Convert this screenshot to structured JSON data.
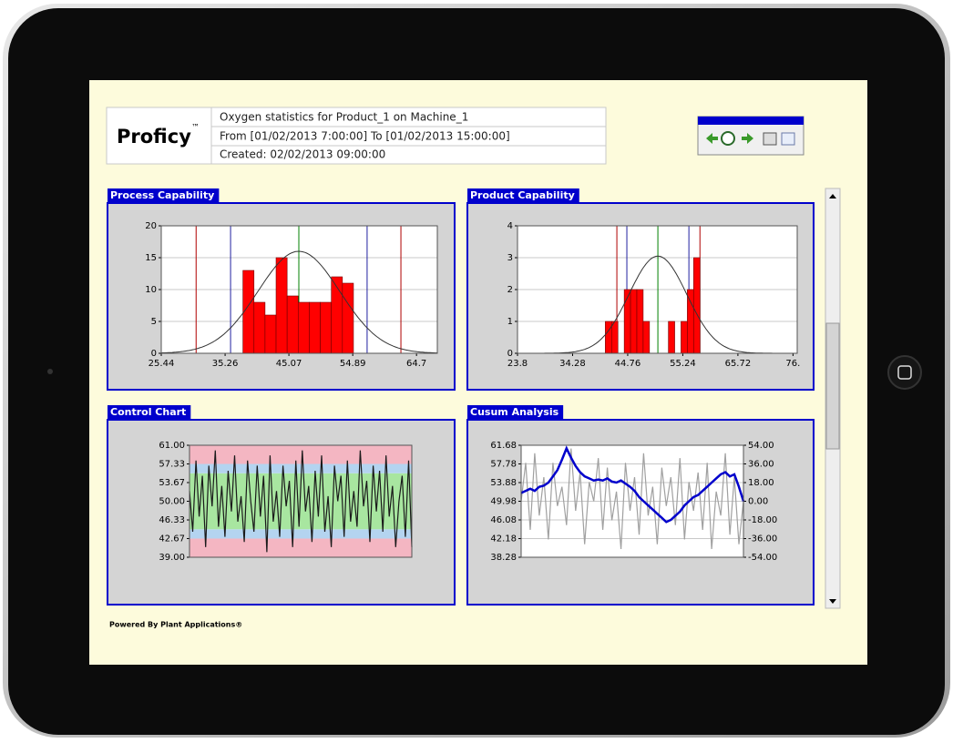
{
  "header": {
    "logo": "Proficy",
    "logo_mark": "™",
    "lines": [
      "Oxygen statistics for Product_1 on Machine_1",
      "From [01/02/2013 7:00:00] To [01/02/2013 15:00:00]",
      "Created: 02/02/2013 09:00:00"
    ]
  },
  "footer": "Powered By Plant Applications®",
  "chart_data": [
    {
      "type": "histogram",
      "title": "Process Capability",
      "bins": [
        38.0,
        39.7,
        41.4,
        43.1,
        44.8,
        46.5,
        48.2,
        49.9,
        51.6,
        53.3,
        55.0
      ],
      "counts": [
        13,
        8,
        6,
        15,
        9,
        8,
        8,
        8,
        12,
        11
      ],
      "color": "#ff0000",
      "xlim": [
        25.44,
        67.9
      ],
      "xticks": [
        25.44,
        35.26,
        45.07,
        54.89,
        64.7
      ],
      "ylim": [
        0,
        20
      ],
      "yticks": [
        0,
        5,
        10,
        15,
        20
      ],
      "grid": true,
      "spec_lines": [
        {
          "value": 30.8,
          "color": "#b00000"
        },
        {
          "value": 36.1,
          "color": "#2020a0"
        },
        {
          "value": 46.6,
          "color": "#008000"
        },
        {
          "value": 57.1,
          "color": "#2020a0"
        },
        {
          "value": 62.3,
          "color": "#b00000"
        }
      ],
      "normal_fit": {
        "mean": 46.6,
        "sd": 6.3,
        "peak": 16,
        "color": "#333333"
      }
    },
    {
      "type": "histogram",
      "title": "Product Capability",
      "bins": [
        40.5,
        41.7,
        42.9,
        44.1,
        45.3,
        46.5,
        47.7,
        48.9,
        50.1,
        51.3,
        52.5,
        53.7,
        54.9,
        56.1,
        57.3,
        58.5
      ],
      "counts": [
        1,
        1,
        0,
        2,
        2,
        2,
        1,
        0,
        0,
        0,
        1,
        0,
        1,
        2,
        3
      ],
      "color": "#ff0000",
      "xlim": [
        23.8,
        77.0
      ],
      "xticks": [
        23.8,
        34.28,
        44.76,
        55.24,
        65.72,
        {
          "value": 76.2,
          "label": "76."
        }
      ],
      "ylim": [
        0,
        4
      ],
      "yticks": [
        0,
        1,
        2,
        3,
        4
      ],
      "grid": true,
      "spec_lines": [
        {
          "value": 42.7,
          "color": "#b00000"
        },
        {
          "value": 44.6,
          "color": "#2020a0"
        },
        {
          "value": 50.5,
          "color": "#008000"
        },
        {
          "value": 56.4,
          "color": "#2020a0"
        },
        {
          "value": 58.5,
          "color": "#b00000"
        }
      ],
      "normal_fit": {
        "mean": 50.5,
        "sd": 5.5,
        "peak": 3.05,
        "color": "#333333"
      }
    },
    {
      "type": "line",
      "title": "Control Chart",
      "values": [
        52,
        44,
        58,
        47,
        55,
        41,
        57,
        49,
        60,
        45,
        53,
        43,
        56,
        48,
        59,
        46,
        51,
        42,
        58,
        50,
        44,
        57,
        47,
        55,
        40,
        59,
        46,
        52,
        43,
        57,
        49,
        54,
        41,
        58,
        45,
        60,
        48,
        53,
        42,
        56,
        47,
        59,
        44,
        51,
        41,
        57,
        50,
        55,
        43,
        58,
        46,
        52,
        45,
        60,
        49,
        54,
        42,
        57,
        48,
        56,
        44,
        59,
        47,
        53,
        41,
        50,
        55,
        43,
        58,
        41
      ],
      "color": "#1a1a1a",
      "ylim": [
        39,
        61
      ],
      "yticks": [
        {
          "value": 39,
          "label": "39.00"
        },
        42.67,
        46.33,
        {
          "value": 50,
          "label": "50.00"
        },
        53.67,
        57.33,
        {
          "value": 61,
          "label": "61.00"
        }
      ],
      "zones": [
        {
          "from": 39,
          "to": 42.67,
          "color": "#f4b6c2"
        },
        {
          "from": 42.67,
          "to": 44.5,
          "color": "#b4d4f0"
        },
        {
          "from": 44.5,
          "to": 55.5,
          "color": "#a8e6a0"
        },
        {
          "from": 55.5,
          "to": 57.33,
          "color": "#b4d4f0"
        },
        {
          "from": 57.33,
          "to": 61,
          "color": "#f4b6c2"
        }
      ]
    },
    {
      "type": "line",
      "title": "Cusum Analysis",
      "series": [
        {
          "color": "#a0a0a0",
          "values": [
            50,
            58,
            44,
            60,
            47,
            55,
            42,
            58,
            49,
            53,
            45,
            61,
            48,
            56,
            41,
            54,
            50,
            59,
            44,
            57,
            46,
            52,
            40,
            58,
            48,
            55,
            43,
            60,
            47,
            53,
            41,
            57,
            49,
            55,
            45,
            59,
            42,
            54,
            48,
            56,
            44,
            58,
            40,
            52,
            47,
            60,
            43,
            55,
            41,
            50
          ]
        },
        {
          "color": "#0000cc",
          "axis": "y2",
          "values": [
            8,
            10,
            12,
            10,
            14,
            15,
            18,
            24,
            30,
            40,
            51,
            42,
            34,
            28,
            24,
            22,
            20,
            21,
            20,
            22,
            19,
            18,
            20,
            17,
            14,
            10,
            4,
            0,
            -4,
            -8,
            -12,
            -16,
            -20,
            -18,
            -14,
            -10,
            -4,
            0,
            4,
            6,
            10,
            14,
            18,
            22,
            26,
            28,
            24,
            26,
            14,
            0
          ]
        }
      ],
      "ylim": [
        38.28,
        61.68
      ],
      "yticks": [
        38.28,
        42.18,
        46.08,
        49.98,
        53.88,
        57.78,
        61.68
      ],
      "y2lim": [
        -54,
        54
      ],
      "y2ticks": [
        {
          "value": -54,
          "label": "-54.00"
        },
        {
          "value": -36,
          "label": "-36.00"
        },
        {
          "value": -18,
          "label": "-18.00"
        },
        {
          "value": 0,
          "label": "0.00"
        },
        {
          "value": 18,
          "label": "18.00"
        },
        {
          "value": 36,
          "label": "36.00"
        },
        {
          "value": 54,
          "label": "54.00"
        }
      ],
      "grid": true
    }
  ]
}
